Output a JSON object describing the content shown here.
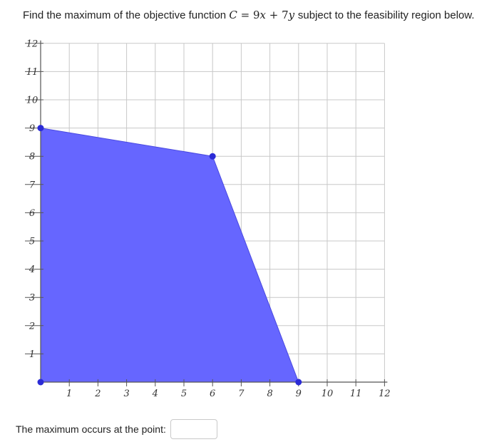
{
  "question": {
    "prefix": "Find the maximum of the objective function",
    "var_c": "C",
    "equals": "=",
    "coef_x": "9",
    "var_x": "x",
    "plus": "+",
    "coef_y": "7",
    "var_y": "y",
    "suffix": "subject to the feasibility region below."
  },
  "answer": {
    "label": "The maximum occurs at the point:",
    "value": ""
  },
  "chart_data": {
    "type": "area",
    "title": "",
    "xlabel": "",
    "ylabel": "",
    "xlim": [
      0,
      12
    ],
    "ylim": [
      0,
      12
    ],
    "grid": true,
    "x_tick_labels": [
      "1",
      "2",
      "3",
      "4",
      "5",
      "6",
      "7",
      "8",
      "9",
      "10",
      "11",
      "12"
    ],
    "y_tick_labels": [
      "1",
      "2",
      "3",
      "4",
      "5",
      "6",
      "7",
      "8",
      "9",
      "10",
      "11",
      "12"
    ],
    "region_vertices": [
      {
        "x": 0,
        "y": 0
      },
      {
        "x": 0,
        "y": 9
      },
      {
        "x": 6,
        "y": 8
      },
      {
        "x": 9,
        "y": 0
      }
    ],
    "region_color": "#6666ff",
    "vertex_color": "#2b2bd6"
  }
}
